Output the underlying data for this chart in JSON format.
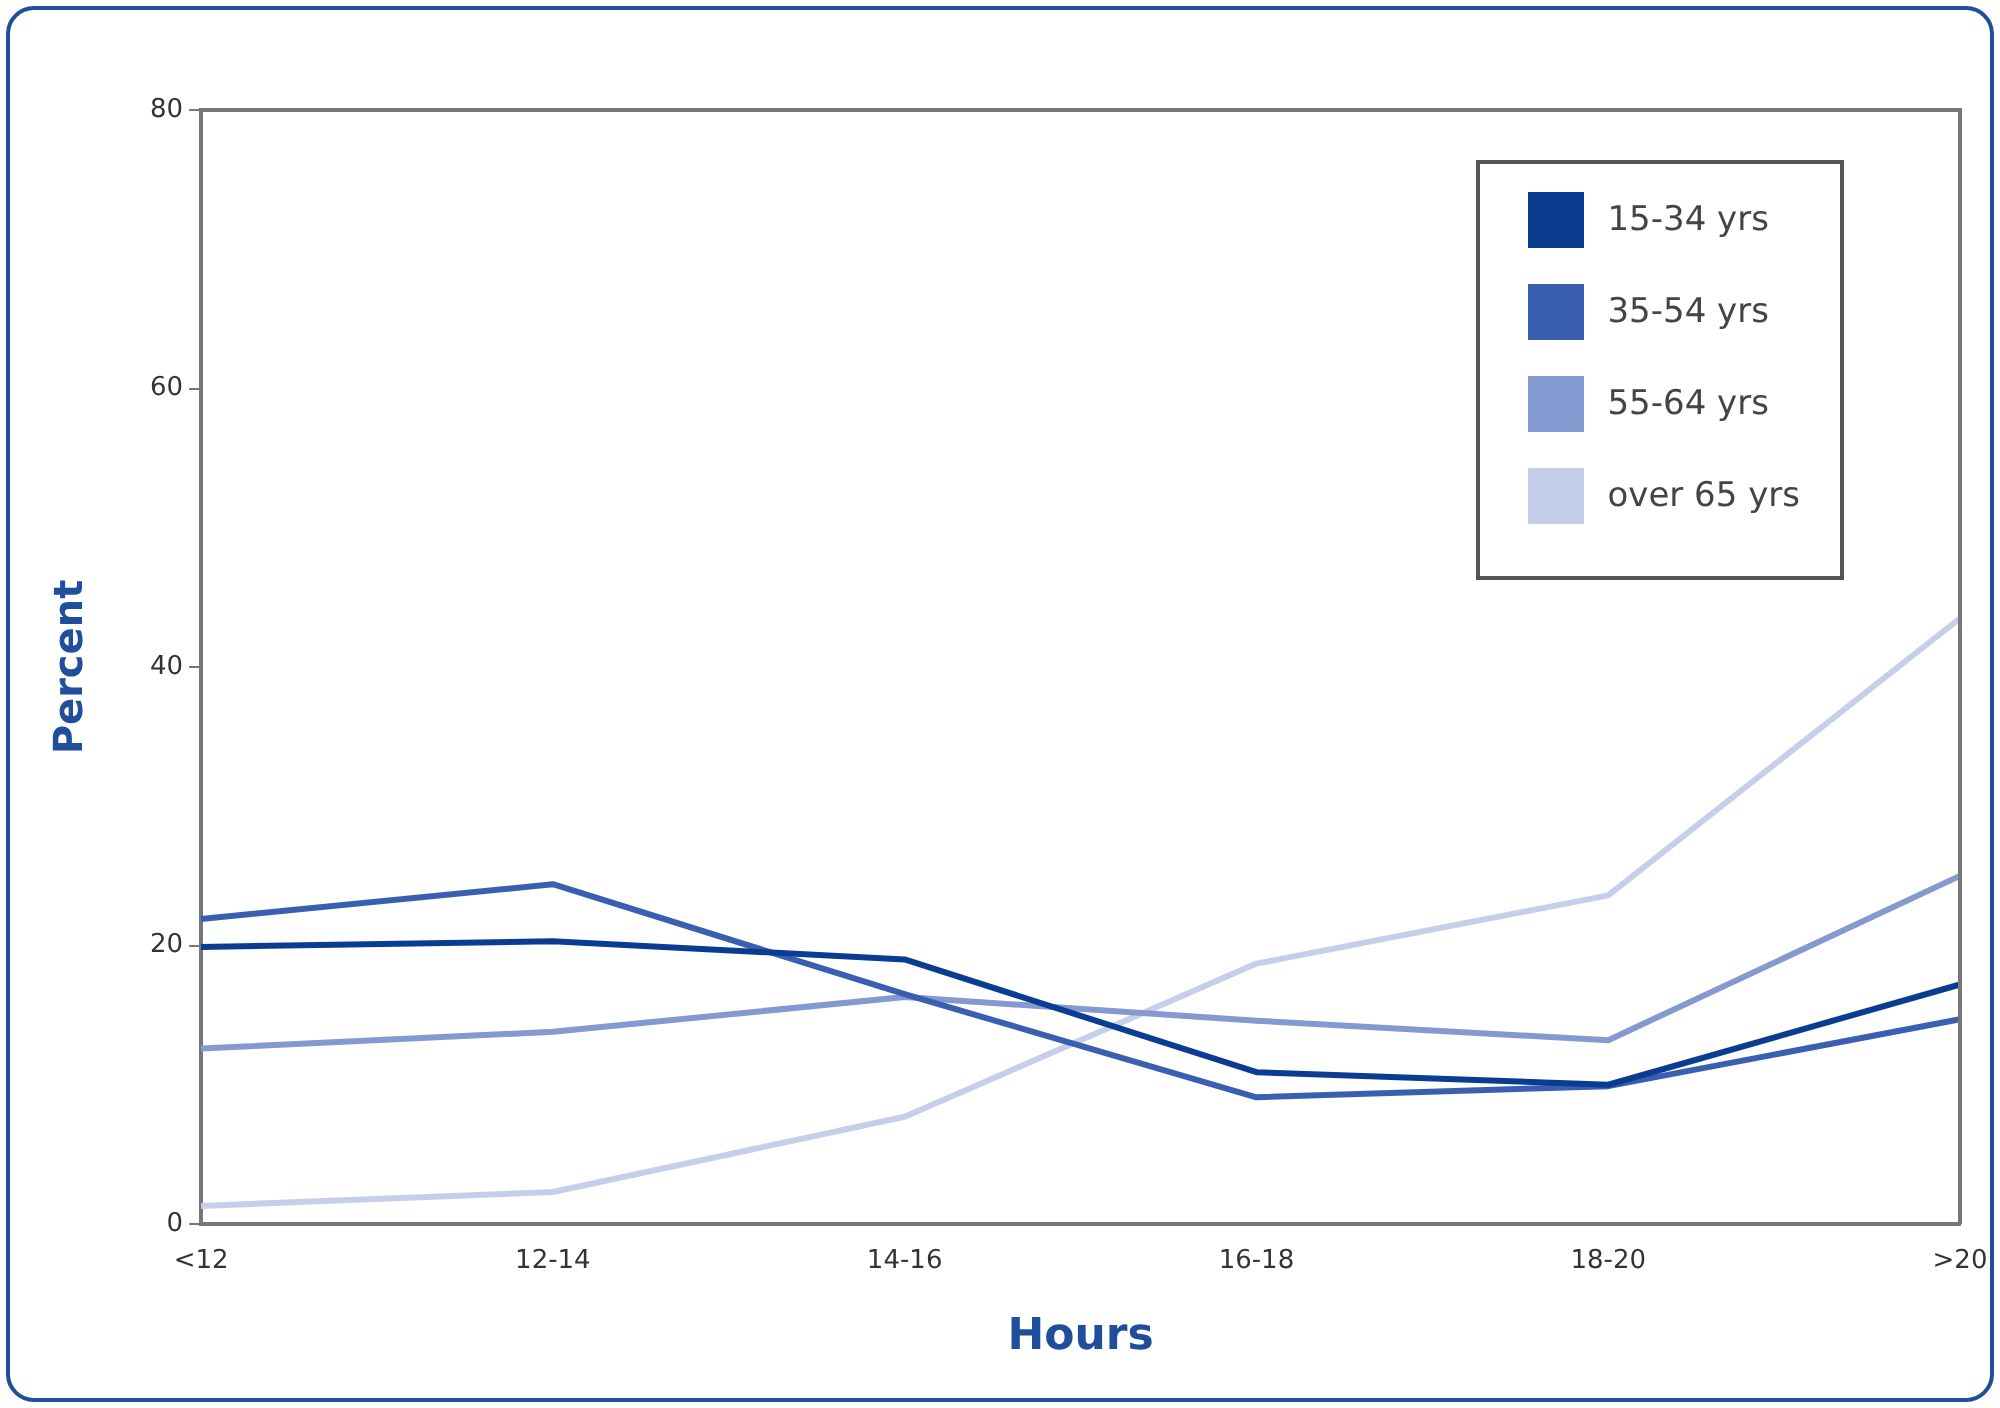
{
  "chart_data": {
    "type": "line",
    "xlabel": "Hours",
    "ylabel": "Percent",
    "categories": [
      "<12",
      "12-14",
      "14-16",
      "16-18",
      "18-20",
      ">20"
    ],
    "series": [
      {
        "name": "15-34 yrs",
        "color": "#0a3d91",
        "values": [
          19.9,
          20.3,
          19,
          10.9,
          10,
          17.2
        ]
      },
      {
        "name": "35-54 yrs",
        "color": "#3b5fb0",
        "values": [
          21.9,
          24.4,
          16.5,
          9.1,
          9.9,
          14.7
        ]
      },
      {
        "name": "55-64 yrs",
        "color": "#8499d0",
        "values": [
          12.6,
          13.8,
          16.3,
          14.6,
          13.2,
          25
        ]
      },
      {
        "name": "over 65 yrs",
        "color": "#c5cfe9",
        "values": [
          1.3,
          2.3,
          7.7,
          18.7,
          23.6,
          43.5
        ]
      }
    ],
    "ylim": [
      0,
      80
    ],
    "yticks": [
      0,
      20,
      40,
      60,
      80
    ],
    "grid": false,
    "legend": "top right",
    "marker": "none",
    "line_style": "solid"
  }
}
